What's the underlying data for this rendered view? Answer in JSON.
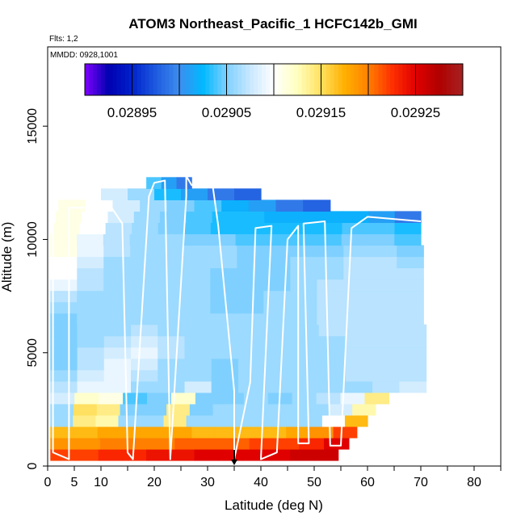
{
  "header": {
    "title": "ATOM3 Northeast_Pacific_1 HCFC142b_GMI",
    "flights_label": "Flts: 1,2",
    "date_label": "MMDD: 0928,1001"
  },
  "colors": {
    "palette": [
      "#7f00ff",
      "#0000b0",
      "#0022cc",
      "#1e5adf",
      "#3d8eef",
      "#00b8ff",
      "#7fd0ff",
      "#c8e8ff",
      "#ffffff",
      "#ffffc0",
      "#ffe060",
      "#ffb000",
      "#ff8000",
      "#ff3000",
      "#e00000",
      "#b00000",
      "#a52222"
    ],
    "track": "#ffffff",
    "marker": "#000000"
  },
  "chart_data": {
    "type": "heatmap",
    "title": "ATOM3 Northeast_Pacific_1 HCFC142b_GMI",
    "xlabel": "Latitude (deg N)",
    "ylabel": "Altitude (m)",
    "xlim": [
      0,
      85
    ],
    "ylim": [
      0,
      18500
    ],
    "x_ticks": [
      0,
      5,
      10,
      20,
      30,
      40,
      50,
      60,
      70,
      80
    ],
    "x_minor_ticks": [
      15,
      25,
      35,
      45,
      55,
      65,
      75,
      85
    ],
    "y_ticks": [
      0,
      5000,
      10000,
      15000
    ],
    "colorbar": {
      "vmin": 0.0289,
      "vmax": 0.0293,
      "tick_values": [
        0.02895,
        0.02905,
        0.02915,
        0.02925
      ],
      "tick_labels": [
        "0.02895",
        "0.02905",
        "0.02915",
        "0.02925"
      ],
      "divisions": [
        0.029,
        0.0291,
        0.0292
      ]
    },
    "altitude_levels": [
      {
        "alt": 500,
        "xmin": 0.5,
        "xmax": 54.5,
        "values": [
          0.02922,
          0.02922,
          0.02923,
          0.02923,
          0.02924,
          0.02924,
          0.02925,
          0.02925,
          0.02925,
          0.02925,
          0.02926,
          0.02926
        ]
      },
      {
        "alt": 1000,
        "xmin": 0.5,
        "xmax": 56.5,
        "values": [
          0.02919,
          0.02919,
          0.0292,
          0.0292,
          0.0292,
          0.02921,
          0.02921,
          0.02921,
          0.02922,
          0.02922,
          0.02923,
          0.02925
        ]
      },
      {
        "alt": 1500,
        "xmin": 0.5,
        "xmax": 58,
        "values": [
          0.02917,
          0.02917,
          0.02918,
          0.02918,
          0.02918,
          0.02918,
          0.02917,
          0.02917,
          0.02917,
          0.02917,
          0.02918,
          0.02919,
          0.02922
        ]
      },
      {
        "alt": 2000,
        "xmin": 0.5,
        "xmax": 60,
        "values": [
          0.02906,
          0.02914,
          0.02913,
          0.02906,
          0.02906,
          0.02914,
          0.02906,
          0.02906,
          0.02906,
          0.02906,
          0.02906,
          0.02906,
          0.0291,
          0.02917
        ]
      },
      {
        "alt": 2500,
        "xmin": 0.5,
        "xmax": 61.5,
        "values": [
          0.02906,
          0.02915,
          0.02914,
          0.02905,
          0.02905,
          0.02914,
          0.02905,
          0.02906,
          0.02906,
          0.02906,
          0.02906,
          0.02906,
          0.02908,
          0.02913
        ]
      },
      {
        "alt": 3000,
        "xmin": 0.5,
        "xmax": 64,
        "values": [
          0.02908,
          0.02912,
          0.02911,
          0.02904,
          0.02905,
          0.02912,
          0.02905,
          0.02905,
          0.02906,
          0.02905,
          0.02906,
          0.02907,
          0.02909,
          0.02914
        ]
      },
      {
        "alt": 3500,
        "xmin": 0.5,
        "xmax": 71,
        "values": [
          0.02907,
          0.02909,
          0.02909,
          0.02906,
          0.02906,
          0.02908,
          0.02905,
          0.02906,
          0.02906,
          0.02906,
          0.02906,
          0.02906,
          0.02907,
          0.02908
        ]
      },
      {
        "alt": 4000,
        "xmin": 0.5,
        "xmax": 71,
        "values": [
          0.02906,
          0.02908,
          0.02909,
          0.02907,
          0.02906,
          0.02906,
          0.02905,
          0.02906,
          0.02906,
          0.02906,
          0.02906,
          0.02907,
          0.02907,
          0.02907
        ]
      },
      {
        "alt": 4500,
        "xmin": 0.5,
        "xmax": 71,
        "values": [
          0.02905,
          0.02907,
          0.02909,
          0.02908,
          0.02906,
          0.02906,
          0.02905,
          0.02906,
          0.02906,
          0.02906,
          0.02906,
          0.02907,
          0.02907,
          0.02907
        ]
      },
      {
        "alt": 5000,
        "xmin": 0.5,
        "xmax": 71,
        "values": [
          0.02905,
          0.02907,
          0.02908,
          0.02909,
          0.02907,
          0.02906,
          0.02906,
          0.02906,
          0.02906,
          0.02906,
          0.02906,
          0.02907,
          0.02907,
          0.02907
        ]
      },
      {
        "alt": 5500,
        "xmin": 0.5,
        "xmax": 71,
        "values": [
          0.02905,
          0.02906,
          0.02907,
          0.02908,
          0.02907,
          0.02906,
          0.02906,
          0.02906,
          0.02906,
          0.02906,
          0.02906,
          0.02907,
          0.02907,
          0.02907
        ]
      },
      {
        "alt": 6000,
        "xmin": 0.5,
        "xmax": 71,
        "values": [
          0.02905,
          0.02906,
          0.02906,
          0.02907,
          0.02906,
          0.02906,
          0.02906,
          0.02906,
          0.02906,
          0.02906,
          0.02907,
          0.02907,
          0.02907,
          0.02907
        ]
      },
      {
        "alt": 6500,
        "xmin": 0.5,
        "xmax": 70.5,
        "values": [
          0.02905,
          0.02906,
          0.02906,
          0.02906,
          0.02906,
          0.02906,
          0.02906,
          0.02906,
          0.02906,
          0.02906,
          0.02907,
          0.02907,
          0.02907,
          0.02907
        ]
      },
      {
        "alt": 7000,
        "xmin": 0.5,
        "xmax": 70.5,
        "values": [
          0.02906,
          0.02906,
          0.02906,
          0.02906,
          0.02906,
          0.02906,
          0.02905,
          0.02905,
          0.02906,
          0.02906,
          0.02907,
          0.02907,
          0.02907,
          0.02907
        ]
      },
      {
        "alt": 7500,
        "xmin": 0.5,
        "xmax": 70.5,
        "values": [
          0.02907,
          0.02906,
          0.02906,
          0.02906,
          0.02906,
          0.02906,
          0.02905,
          0.02905,
          0.02906,
          0.02906,
          0.02907,
          0.02907,
          0.02907,
          0.02907
        ]
      },
      {
        "alt": 8000,
        "xmin": 0.5,
        "xmax": 70.5,
        "values": [
          0.02909,
          0.02907,
          0.02906,
          0.02906,
          0.02906,
          0.02906,
          0.02905,
          0.02905,
          0.02905,
          0.02906,
          0.02907,
          0.02907,
          0.02907,
          0.02907
        ]
      },
      {
        "alt": 8500,
        "xmin": 0.5,
        "xmax": 70.5,
        "values": [
          0.0291,
          0.02907,
          0.02906,
          0.02906,
          0.02906,
          0.02906,
          0.02905,
          0.02905,
          0.02905,
          0.02906,
          0.02906,
          0.02907,
          0.02907,
          0.02907
        ]
      },
      {
        "alt": 9000,
        "xmin": 0.5,
        "xmax": 70.5,
        "values": [
          0.0291,
          0.02908,
          0.02906,
          0.02906,
          0.02906,
          0.02906,
          0.02906,
          0.02905,
          0.02905,
          0.02906,
          0.02906,
          0.02907,
          0.02907,
          0.02906
        ]
      },
      {
        "alt": 9500,
        "xmin": 0.5,
        "xmax": 70.5,
        "values": [
          0.02911,
          0.02909,
          0.02907,
          0.02906,
          0.02906,
          0.02906,
          0.02906,
          0.02905,
          0.02905,
          0.02905,
          0.02905,
          0.02906,
          0.02906,
          0.02905
        ]
      },
      {
        "alt": 10000,
        "xmin": 0.5,
        "xmax": 70,
        "values": [
          0.02911,
          0.02909,
          0.02907,
          0.02906,
          0.02906,
          0.02905,
          0.02905,
          0.02904,
          0.02904,
          0.02904,
          0.02904,
          0.02905,
          0.02905,
          0.02904
        ]
      },
      {
        "alt": 10500,
        "xmin": 1,
        "xmax": 70,
        "values": [
          0.02911,
          0.0291,
          0.02907,
          0.02906,
          0.02905,
          0.02904,
          0.02903,
          0.02903,
          0.02903,
          0.02903,
          0.02903,
          0.02904,
          0.02904,
          0.02903
        ]
      },
      {
        "alt": 11000,
        "xmin": 1.5,
        "xmax": 70,
        "values": [
          0.02911,
          0.0291,
          0.02908,
          0.02906,
          0.02905,
          0.02904,
          0.02903,
          0.02903,
          0.02902,
          0.02902,
          0.02902,
          0.02902,
          0.02901,
          0.02899
        ]
      },
      {
        "alt": 11500,
        "xmin": 2,
        "xmax": 53,
        "values": [
          0.02911,
          0.0291,
          0.02908,
          0.02906,
          0.02905,
          0.02904,
          0.02902,
          0.02901,
          0.02899,
          0.02898
        ]
      },
      {
        "alt": 12000,
        "xmin": 10,
        "xmax": 40,
        "values": [
          0.02908,
          0.02906,
          0.02903,
          0.02901,
          0.02899,
          0.02898
        ]
      },
      {
        "alt": 12500,
        "xmin": 18.5,
        "xmax": 27,
        "values": [
          0.02904,
          0.02901,
          0.02899
        ]
      }
    ],
    "flight_track": [
      [
        1,
        11000
      ],
      [
        1,
        600
      ],
      [
        4,
        300
      ],
      [
        4,
        11400
      ],
      [
        12,
        11400
      ],
      [
        14,
        10700
      ],
      [
        15,
        600
      ],
      [
        16,
        300
      ],
      [
        19,
        11900
      ],
      [
        20,
        12500
      ],
      [
        22,
        12600
      ],
      [
        23,
        300
      ],
      [
        26,
        11900
      ],
      [
        26,
        12800
      ],
      [
        27,
        12400
      ],
      [
        31,
        12300
      ],
      [
        32,
        10600
      ],
      [
        35,
        3300
      ],
      [
        35,
        300
      ],
      [
        38,
        3700
      ],
      [
        39,
        10500
      ],
      [
        42,
        10600
      ],
      [
        40,
        300
      ],
      [
        43,
        600
      ],
      [
        45,
        10000
      ],
      [
        47,
        10600
      ],
      [
        47,
        1000
      ],
      [
        49,
        1000
      ],
      [
        48,
        10700
      ],
      [
        52,
        10800
      ],
      [
        53,
        900
      ],
      [
        55,
        900
      ],
      [
        57,
        10500
      ],
      [
        60,
        11000
      ],
      [
        70,
        10800
      ]
    ],
    "marker_lat": 35
  }
}
